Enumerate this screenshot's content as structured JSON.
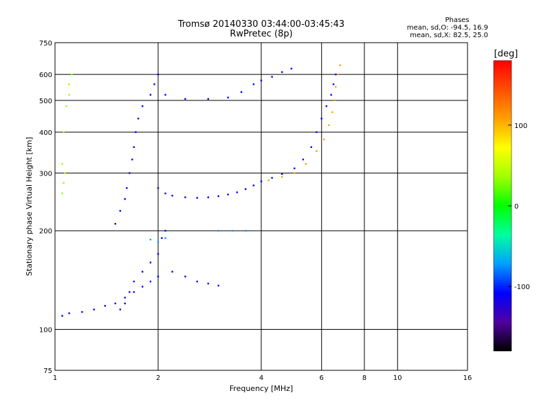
{
  "header": {
    "title": "Tromsø 20140330 03:44:00-03:45:43",
    "subtitle": "RwPretec (8p)"
  },
  "phases": {
    "heading": "Phases",
    "line_o": "mean, sd,O: -94.5, 16.9",
    "line_x": "mean, sd,X:  82.5, 25.0"
  },
  "colorbar": {
    "unit": "[deg]",
    "ticks": [
      "100",
      "0",
      "-100"
    ],
    "tick_values": [
      100,
      0,
      -100
    ],
    "range": [
      -180,
      180
    ],
    "colors": [
      "#000000",
      "#5000a0",
      "#0000ff",
      "#00a0ff",
      "#00ffa0",
      "#00ff00",
      "#a0ff00",
      "#ffff00",
      "#ffa000",
      "#ff5000",
      "#ff0000"
    ]
  },
  "chart_data": {
    "type": "scatter",
    "xlabel": "Frequency [MHz]",
    "ylabel": "Stationary phase Virtual Height [km]",
    "x_scale": "log",
    "y_scale": "log",
    "xlim": [
      1,
      16
    ],
    "ylim": [
      75,
      750
    ],
    "grid": true,
    "x_ticks": [
      1,
      2,
      4,
      6,
      8,
      10,
      16
    ],
    "x_tick_labels": [
      "1",
      "2",
      "4",
      "6",
      "8",
      "10",
      "16"
    ],
    "y_ticks": [
      75,
      100,
      200,
      300,
      400,
      500,
      600,
      750
    ],
    "y_tick_labels": [
      "75",
      "100",
      "200",
      "300",
      "400",
      "500",
      "600",
      "750"
    ],
    "series": [
      {
        "values": [
          [
            1.55,
            115
          ],
          [
            1.6,
            120
          ],
          [
            1.65,
            130
          ],
          [
            1.7,
            140
          ],
          [
            1.8,
            150
          ],
          [
            1.9,
            160
          ],
          [
            2.0,
            170
          ],
          [
            2.05,
            190
          ],
          [
            2.1,
            200
          ],
          [
            1.5,
            210
          ],
          [
            1.55,
            230
          ],
          [
            1.6,
            250
          ],
          [
            1.62,
            270
          ],
          [
            1.65,
            300
          ],
          [
            1.68,
            330
          ],
          [
            1.7,
            360
          ],
          [
            1.72,
            400
          ],
          [
            1.75,
            440
          ],
          [
            1.8,
            480
          ],
          [
            1.9,
            520
          ],
          [
            1.95,
            560
          ],
          [
            2.0,
            600
          ]
        ],
        "phase": -100
      },
      {
        "values": [
          [
            1.05,
            110
          ],
          [
            1.1,
            112
          ],
          [
            1.2,
            113
          ],
          [
            1.3,
            115
          ],
          [
            1.4,
            118
          ],
          [
            1.5,
            120
          ],
          [
            1.6,
            125
          ],
          [
            1.7,
            130
          ],
          [
            1.8,
            135
          ],
          [
            1.9,
            140
          ],
          [
            2.0,
            145
          ],
          [
            2.2,
            150
          ],
          [
            2.4,
            145
          ],
          [
            2.6,
            140
          ],
          [
            2.8,
            138
          ],
          [
            3.0,
            136
          ]
        ],
        "phase": -100
      },
      {
        "values": [
          [
            2.0,
            270
          ],
          [
            2.1,
            260
          ],
          [
            2.2,
            256
          ],
          [
            2.4,
            253
          ],
          [
            2.6,
            252
          ],
          [
            2.8,
            253
          ],
          [
            3.0,
            255
          ],
          [
            3.2,
            258
          ],
          [
            3.4,
            262
          ],
          [
            3.6,
            268
          ],
          [
            3.8,
            275
          ],
          [
            4.0,
            283
          ],
          [
            4.3,
            290
          ],
          [
            4.6,
            298
          ],
          [
            5.0,
            310
          ],
          [
            5.3,
            330
          ],
          [
            5.6,
            360
          ],
          [
            5.8,
            400
          ],
          [
            6.0,
            440
          ],
          [
            6.2,
            480
          ],
          [
            6.4,
            520
          ],
          [
            6.5,
            560
          ],
          [
            6.6,
            600
          ]
        ],
        "phase": -100
      },
      {
        "values": [
          [
            2.1,
            520
          ],
          [
            2.4,
            505
          ],
          [
            2.8,
            505
          ],
          [
            3.2,
            510
          ],
          [
            3.5,
            530
          ],
          [
            3.8,
            560
          ],
          [
            4.0,
            575
          ],
          [
            4.3,
            590
          ],
          [
            4.6,
            610
          ],
          [
            4.9,
            625
          ]
        ],
        "phase": -100
      },
      {
        "values": [
          [
            4.2,
            285
          ],
          [
            4.6,
            292
          ],
          [
            5.0,
            300
          ],
          [
            5.4,
            320
          ],
          [
            5.8,
            350
          ],
          [
            6.1,
            380
          ],
          [
            6.3,
            420
          ],
          [
            6.45,
            460
          ],
          [
            6.55,
            500
          ],
          [
            6.6,
            550
          ],
          [
            6.7,
            600
          ],
          [
            6.8,
            640
          ]
        ],
        "phase": 90
      },
      {
        "values": [
          [
            1.05,
            260
          ],
          [
            1.06,
            280
          ],
          [
            1.07,
            300
          ],
          [
            1.05,
            320
          ],
          [
            1.06,
            400
          ],
          [
            1.08,
            480
          ],
          [
            1.1,
            520
          ],
          [
            1.1,
            560
          ],
          [
            1.12,
            600
          ]
        ],
        "phase": 20
      },
      {
        "values": [
          [
            3.0,
            200
          ],
          [
            3.3,
            200
          ],
          [
            3.6,
            200
          ],
          [
            2.1,
            190
          ],
          [
            2.0,
            185
          ],
          [
            1.9,
            188
          ]
        ],
        "phase": -90
      }
    ]
  }
}
